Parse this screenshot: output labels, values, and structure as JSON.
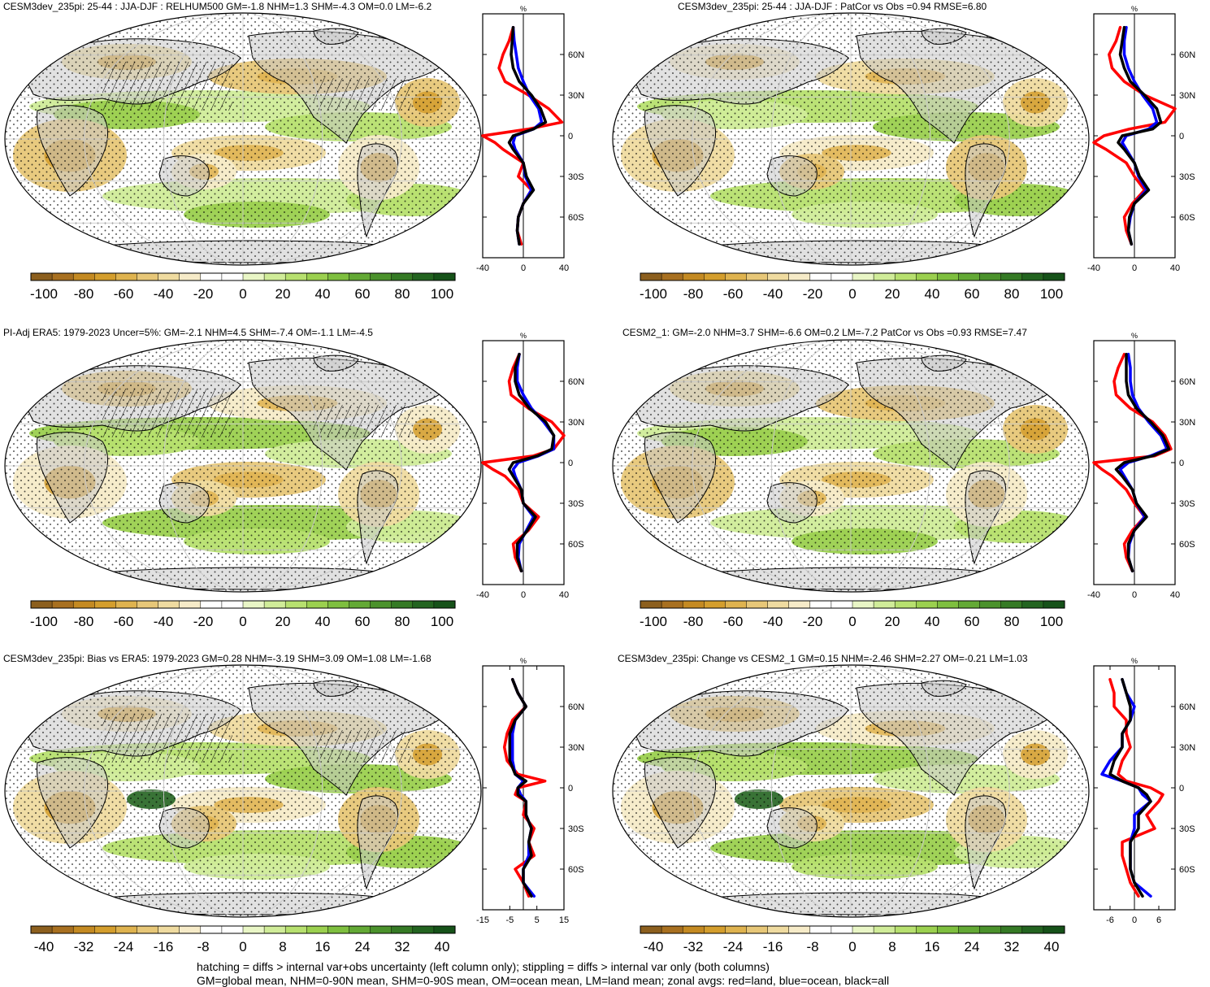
{
  "colors": {
    "land": "#c8c8c8",
    "map_outline": "#000000",
    "grid": "#c9c9c9",
    "zonal_land": "#ff0000",
    "zonal_ocean": "#0000ff",
    "zonal_all": "#000000"
  },
  "colorbars": {
    "relhum": {
      "labels": [
        "-100",
        "-80",
        "-60",
        "-40",
        "-20",
        "0",
        "20",
        "40",
        "60",
        "80",
        "100"
      ],
      "colors": [
        "#8c5f1e",
        "#a87020",
        "#c48a22",
        "#d49e2d",
        "#dfb34f",
        "#e7c778",
        "#efdba0",
        "#f6ebc8",
        "#ffffff",
        "#ffffff",
        "#e9f6c6",
        "#d0ec99",
        "#b7e06f",
        "#9bd04f",
        "#7ebf3f",
        "#63a935",
        "#4b922c",
        "#357a25",
        "#236420",
        "#165219"
      ]
    },
    "diff": {
      "labels": [
        "-40",
        "-32",
        "-24",
        "-16",
        "-8",
        "0",
        "8",
        "16",
        "24",
        "32",
        "40"
      ],
      "colors": [
        "#8c5f1e",
        "#a87020",
        "#c48a22",
        "#d49e2d",
        "#dfb34f",
        "#e7c778",
        "#efdba0",
        "#f6ebc8",
        "#ffffff",
        "#ffffff",
        "#e9f6c6",
        "#d0ec99",
        "#b7e06f",
        "#9bd04f",
        "#7ebf3f",
        "#63a935",
        "#4b922c",
        "#357a25",
        "#236420",
        "#165219"
      ]
    }
  },
  "chart_data": [
    {
      "type": "heatmap",
      "title": "CESM3dev_235pi: 25-44 : JJA-DJF : RELHUM500 GM=-1.8 NHM=1.3 SHM=-4.3 OM=0.0 LM=-6.2",
      "colorbar": "relhum",
      "zonal": {
        "unit": "%",
        "xlim": [
          -40,
          40
        ],
        "xticks": [
          "-40",
          "0",
          "40"
        ],
        "ylim": [
          -90,
          90
        ],
        "yticks": [
          "60N",
          "30N",
          "0",
          "30S",
          "60S"
        ],
        "lat": [
          80,
          70,
          60,
          50,
          40,
          30,
          20,
          10,
          5,
          0,
          -5,
          -10,
          -20,
          -30,
          -40,
          -50,
          -60,
          -70,
          -80
        ],
        "land": [
          -10,
          -14,
          -20,
          -24,
          -18,
          5,
          25,
          38,
          5,
          -40,
          -28,
          -20,
          0,
          -5,
          8,
          0,
          -5,
          -6,
          -2
        ],
        "ocean": [
          -10,
          -9,
          -7,
          -5,
          0,
          6,
          15,
          18,
          10,
          -8,
          -10,
          -8,
          0,
          2,
          8,
          0,
          -5,
          -6,
          -4
        ],
        "all": [
          -10,
          -11,
          -12,
          -10,
          -4,
          8,
          17,
          22,
          10,
          -10,
          -14,
          -10,
          0,
          3,
          10,
          0,
          -5,
          -6,
          -4
        ]
      }
    },
    {
      "type": "heatmap",
      "title": "CESM3dev_235pi: 25-44 : JJA-DJF : PatCor vs Obs =0.94 RMSE=6.80",
      "colorbar": "relhum",
      "zonal": {
        "unit": "%",
        "xlim": [
          -40,
          40
        ],
        "xticks": [
          "-40",
          "0",
          "40"
        ],
        "ylim": [
          -90,
          90
        ],
        "yticks": [
          "60N",
          "30N",
          "0",
          "30S",
          "60S"
        ],
        "lat": [
          80,
          70,
          60,
          50,
          40,
          30,
          20,
          10,
          5,
          0,
          -5,
          -10,
          -20,
          -30,
          -40,
          -50,
          -60,
          -70,
          -80
        ],
        "land": [
          -14,
          -18,
          -25,
          -22,
          -10,
          10,
          40,
          30,
          -5,
          -30,
          -40,
          -28,
          -8,
          0,
          10,
          -2,
          -10,
          -8,
          -3
        ],
        "ocean": [
          -8,
          -10,
          -10,
          -6,
          0,
          8,
          18,
          22,
          14,
          -8,
          -12,
          -8,
          0,
          4,
          12,
          0,
          -4,
          -6,
          -3
        ],
        "all": [
          -10,
          -12,
          -14,
          -10,
          -4,
          10,
          22,
          26,
          18,
          -12,
          -16,
          -10,
          0,
          5,
          14,
          0,
          -5,
          -6,
          -3
        ]
      }
    },
    {
      "type": "heatmap",
      "title": "PI-Adj ERA5: 1979-2023 Uncer=5%: GM=-2.1 NHM=4.5 SHM=-7.4 OM=-1.1 LM=-4.5",
      "colorbar": "relhum",
      "zonal": {
        "unit": "%",
        "xlim": [
          -40,
          40
        ],
        "xticks": [
          "-40",
          "0",
          "40"
        ],
        "ylim": [
          -90,
          90
        ],
        "yticks": [
          "60N",
          "30N",
          "0",
          "30S",
          "60S"
        ],
        "lat": [
          80,
          70,
          60,
          50,
          40,
          30,
          20,
          10,
          5,
          0,
          -5,
          -10,
          -20,
          -30,
          -40,
          -50,
          -60,
          -70,
          -80
        ],
        "land": [
          -4,
          -10,
          -14,
          -12,
          5,
          28,
          40,
          30,
          10,
          -42,
          -30,
          -18,
          -5,
          0,
          15,
          5,
          -10,
          -8,
          -2
        ],
        "ocean": [
          -4,
          -6,
          -6,
          0,
          8,
          20,
          30,
          30,
          15,
          -5,
          -10,
          -8,
          -2,
          0,
          10,
          3,
          -4,
          -5,
          -2
        ],
        "all": [
          -4,
          -8,
          -8,
          -4,
          6,
          22,
          30,
          28,
          14,
          -10,
          -14,
          -10,
          -2,
          0,
          12,
          4,
          -6,
          -6,
          -2
        ]
      }
    },
    {
      "type": "heatmap",
      "title": "CESM2_1: GM=-2.0 NHM=3.7 SHM=-6.6 OM=0.2 LM=-7.2 PatCor vs Obs =0.93 RMSE=7.47",
      "colorbar": "relhum",
      "zonal": {
        "unit": "%",
        "xlim": [
          -40,
          40
        ],
        "xticks": [
          "-40",
          "0",
          "40"
        ],
        "ylim": [
          -90,
          90
        ],
        "yticks": [
          "60N",
          "30N",
          "0",
          "30S",
          "60S"
        ],
        "lat": [
          80,
          70,
          60,
          50,
          40,
          30,
          20,
          10,
          5,
          0,
          -5,
          -10,
          -20,
          -30,
          -40,
          -50,
          -60,
          -70,
          -80
        ],
        "land": [
          -10,
          -16,
          -20,
          -18,
          -4,
          18,
          30,
          36,
          20,
          -40,
          -32,
          -22,
          -8,
          0,
          10,
          -2,
          -10,
          -8,
          -2
        ],
        "ocean": [
          -6,
          -4,
          -4,
          -2,
          4,
          14,
          26,
          32,
          16,
          -6,
          -14,
          -10,
          -2,
          2,
          10,
          0,
          -5,
          -6,
          -2
        ],
        "all": [
          -8,
          -8,
          -8,
          -6,
          2,
          16,
          28,
          34,
          18,
          -10,
          -18,
          -12,
          -2,
          2,
          12,
          0,
          -6,
          -6,
          -2
        ]
      }
    },
    {
      "type": "heatmap",
      "title": "CESM3dev_235pi: Bias vs ERA5: 1979-2023 GM=0.28 NHM=-3.19 SHM=3.09 OM=1.08 LM=-1.68",
      "colorbar": "diff",
      "zonal": {
        "unit": "%",
        "xlim": [
          -15,
          15
        ],
        "xticks": [
          "-15",
          "-5",
          "5",
          "15"
        ],
        "ylim": [
          -90,
          90
        ],
        "yticks": [
          "60N",
          "30N",
          "0",
          "30S",
          "60S"
        ],
        "lat": [
          80,
          70,
          60,
          50,
          40,
          30,
          20,
          10,
          5,
          0,
          -5,
          -10,
          -20,
          -30,
          -40,
          -50,
          -60,
          -70,
          -80
        ],
        "land": [
          -4,
          -2,
          1,
          -4,
          -6,
          -7,
          -6,
          -2,
          8,
          -2,
          -3,
          1,
          0,
          4,
          2,
          4,
          -3,
          0,
          2
        ],
        "ocean": [
          -4,
          -2,
          1,
          -3,
          -4,
          -4,
          -4,
          -3,
          0,
          -2,
          -1,
          1,
          1,
          3,
          2,
          2,
          0,
          0,
          4
        ],
        "all": [
          -4,
          -2,
          1,
          -3,
          -5,
          -5,
          -5,
          -3,
          1,
          -2,
          -2,
          1,
          1,
          3,
          2,
          3,
          0,
          0,
          3
        ]
      }
    },
    {
      "type": "heatmap",
      "title": "CESM3dev_235pi: Change vs CESM2_1 GM=0.15 NHM=-2.46 SHM=2.27 OM=-0.21 LM=1.03",
      "colorbar": "diff",
      "zonal": {
        "unit": "%",
        "xlim": [
          -10,
          10
        ],
        "xticks": [
          "-6",
          "0",
          "6"
        ],
        "ylim": [
          -90,
          90
        ],
        "yticks": [
          "60N",
          "30N",
          "0",
          "30S",
          "60S"
        ],
        "lat": [
          80,
          70,
          60,
          50,
          40,
          30,
          20,
          10,
          5,
          0,
          -5,
          -10,
          -20,
          -30,
          -40,
          -50,
          -60,
          -70,
          -80
        ],
        "land": [
          -6,
          -5,
          -5,
          -2,
          -2,
          -1,
          -3,
          -4,
          -2,
          4,
          7,
          6,
          3,
          5,
          -3,
          -3,
          -2,
          -1,
          1
        ],
        "ocean": [
          -3,
          -2,
          0,
          -1,
          -3,
          -3,
          -6,
          -8,
          -3,
          1,
          2,
          4,
          0,
          0,
          -1,
          -1,
          -1,
          0,
          4
        ],
        "all": [
          -3,
          -2,
          -1,
          -1,
          -3,
          -3,
          -5,
          -6,
          -3,
          1,
          3,
          4,
          1,
          1,
          -1,
          -1,
          -1,
          0,
          2
        ]
      }
    }
  ],
  "footnotes": {
    "line1": "hatching = diffs > internal var+obs uncertainty (left column only); stippling = diffs > internal var only (both columns)",
    "line2": "GM=global mean, NHM=0-90N mean, SHM=0-90S mean, OM=ocean mean, LM=land mean; zonal avgs: red=land, blue=ocean, black=all"
  }
}
